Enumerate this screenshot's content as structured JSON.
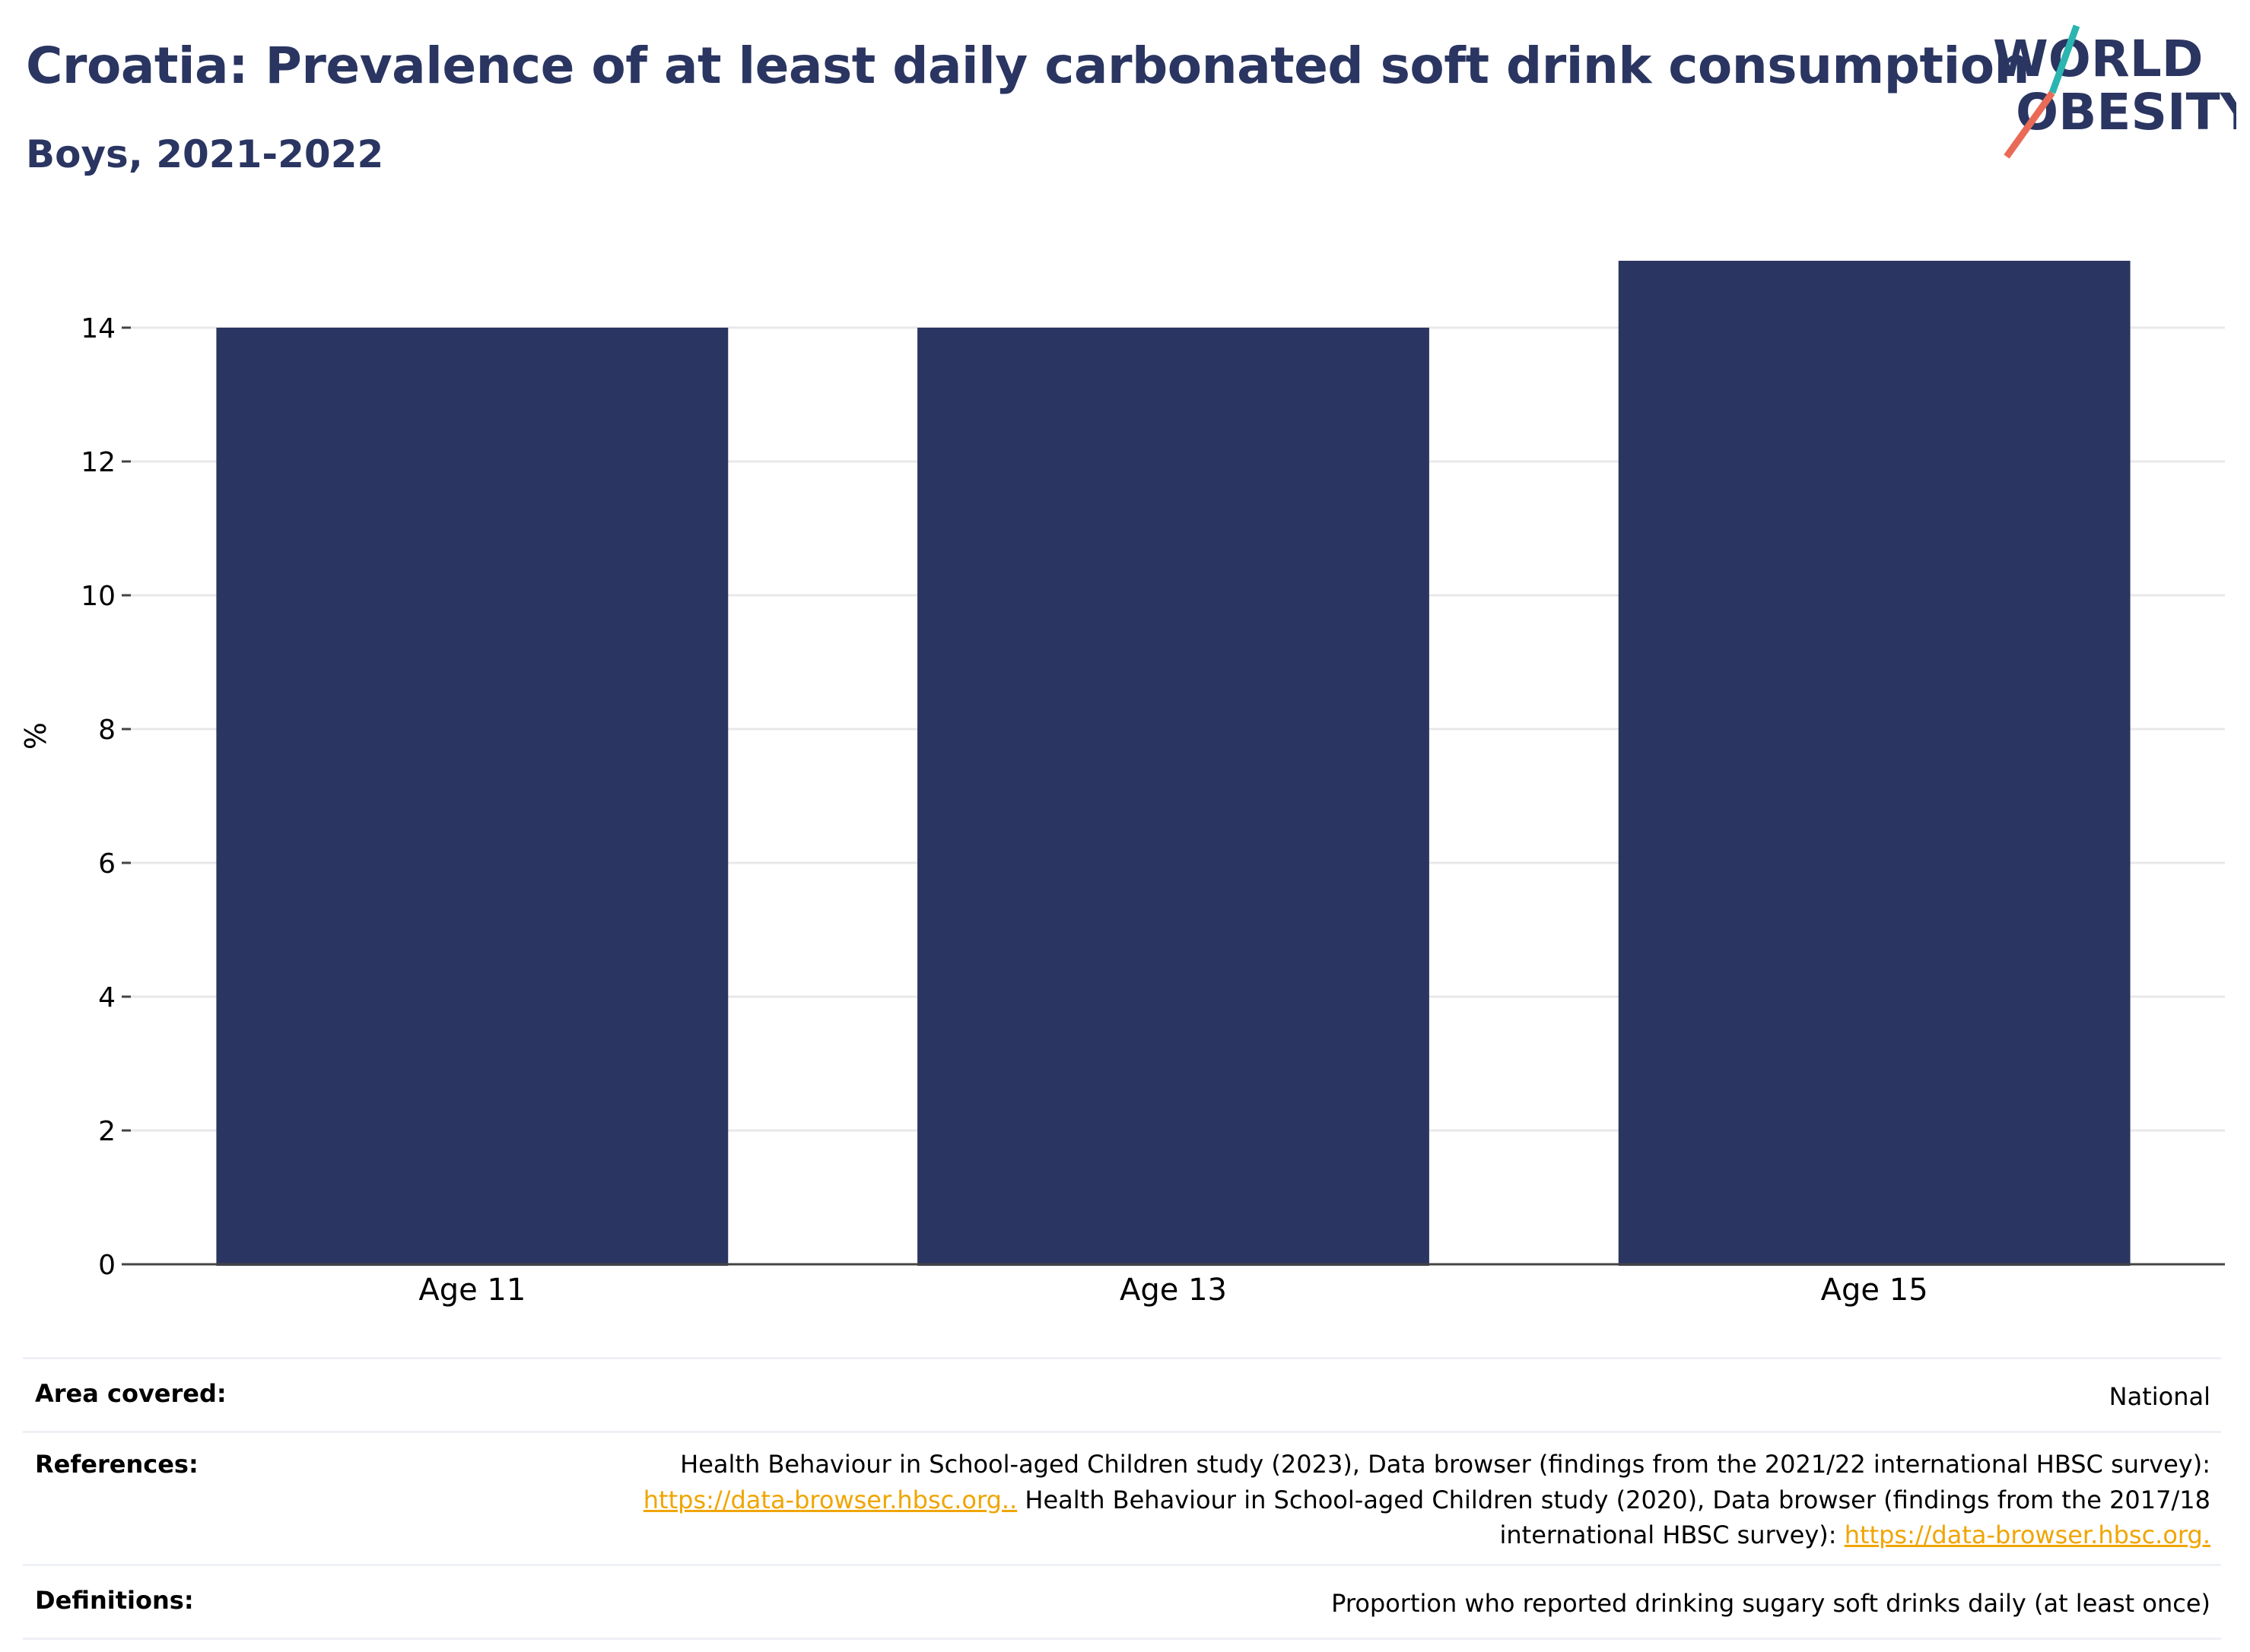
{
  "header": {
    "title": "Croatia: Prevalence of at least daily carbonated soft drink consumption",
    "subtitle": "Boys, 2021-2022"
  },
  "logo": {
    "line1": "WORLD",
    "line2": "OBESITY",
    "colors": {
      "text": "#2a3561",
      "slash_top": "#2bb5b0",
      "slash_bottom": "#e96b57"
    }
  },
  "chart_data": {
    "type": "bar",
    "categories": [
      "Age 11",
      "Age 13",
      "Age 15"
    ],
    "values": [
      14,
      14,
      15
    ],
    "ylabel": "%",
    "xlabel": "",
    "ylim": [
      0,
      15
    ],
    "yticks": [
      0,
      2,
      4,
      6,
      8,
      10,
      12,
      14
    ],
    "grid": true,
    "bar_color": "#2a3561",
    "grid_color": "#e8e8e8"
  },
  "info": {
    "area_label": "Area covered:",
    "area_value": "National",
    "references_label": "References:",
    "references_text1": "Health Behaviour in School-aged Children study (2023), Data browser (findings from the 2021/22 international HBSC survey):",
    "references_link1": "https://data-browser.hbsc.org..",
    "references_text2": " Health Behaviour in School-aged Children study (2020), Data browser (findings from the 2017/18",
    "references_text3": "international HBSC survey): ",
    "references_link2": "https://data-browser.hbsc.org.",
    "definitions_label": "Definitions:",
    "definitions_value": "Proportion who reported drinking sugary soft drinks daily (at least once)"
  }
}
